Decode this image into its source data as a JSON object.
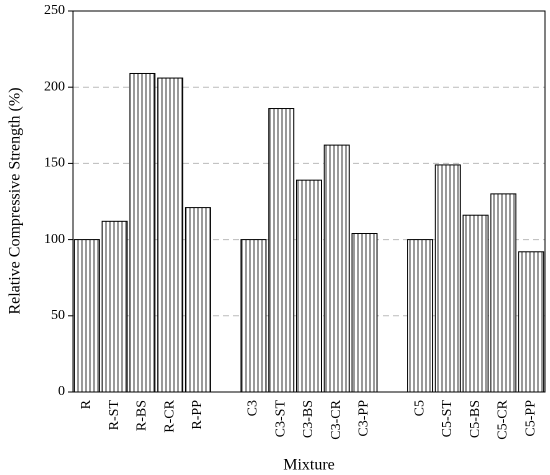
{
  "chart_data": {
    "type": "bar",
    "y_label": "Relative Compressive Strength (%)",
    "x_label": "Mixture",
    "categories": [
      "R",
      "R-ST",
      "R-BS",
      "R-CR",
      "R-PP",
      null,
      "C3",
      "C3-ST",
      "C3-BS",
      "C3-CR",
      "C3-PP",
      null,
      "C5",
      "C5-ST",
      "C5-BS",
      "C5-CR",
      "C5-PP"
    ],
    "values": [
      100,
      112,
      209,
      206,
      121,
      null,
      100,
      186,
      139,
      162,
      104,
      null,
      100,
      149,
      116,
      130,
      92
    ],
    "color": "#ffffff",
    "ylim": [
      0,
      250
    ],
    "yticks": [
      0,
      50,
      100,
      150,
      200,
      250
    ],
    "grid": true
  }
}
